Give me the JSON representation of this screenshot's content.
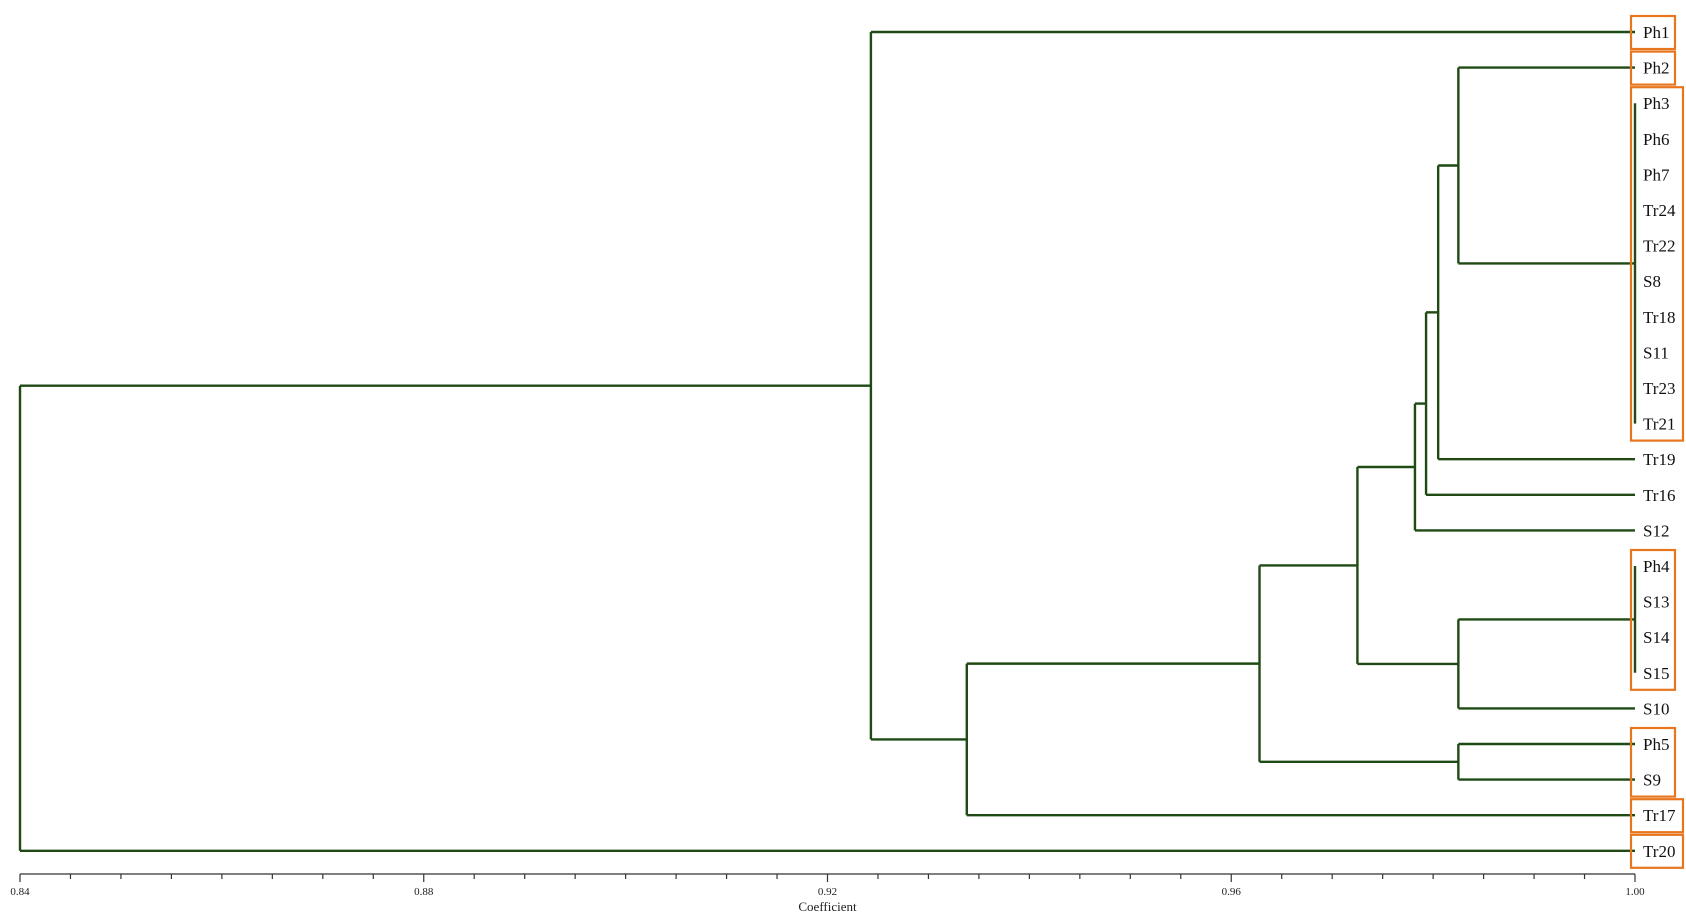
{
  "chart_data": {
    "type": "dendrogram",
    "xlabel": "Coefficient",
    "xlim": [
      0.84,
      1.0
    ],
    "ticks": [
      {
        "value": 0.84,
        "label": "0.84"
      },
      {
        "value": 0.88,
        "label": "0.88"
      },
      {
        "value": 0.92,
        "label": "0.92"
      },
      {
        "value": 0.96,
        "label": "0.96"
      },
      {
        "value": 1.0,
        "label": "1.00"
      }
    ],
    "colors": {
      "branch": "#1f4a14",
      "box": "#e8761f"
    },
    "leaves": [
      "Ph1",
      "Ph2",
      "Ph3",
      "Ph6",
      "Ph7",
      "Tr24",
      "Tr22",
      "S8",
      "Tr18",
      "S11",
      "Tr23",
      "Tr21",
      "Tr19",
      "Tr16",
      "S12",
      "Ph4",
      "S13",
      "S14",
      "S15",
      "S10",
      "Ph5",
      "S9",
      "Tr17",
      "Tr20"
    ],
    "merges": [
      {
        "id": "n1",
        "children": [
          "Ph3",
          "Ph6",
          "Ph7",
          "Tr24",
          "Tr22",
          "S8",
          "Tr18",
          "S11",
          "Tr23",
          "Tr21"
        ],
        "height": 1.0
      },
      {
        "id": "n2",
        "children": [
          "Ph2",
          "n1"
        ],
        "height": 0.9825
      },
      {
        "id": "n3",
        "children": [
          "n2",
          "Tr19"
        ],
        "height": 0.9805
      },
      {
        "id": "n4",
        "children": [
          "n3",
          "Tr16"
        ],
        "height": 0.9793
      },
      {
        "id": "n5",
        "children": [
          "n4",
          "S12"
        ],
        "height": 0.9782
      },
      {
        "id": "n6",
        "children": [
          "Ph4",
          "S13",
          "S14",
          "S15"
        ],
        "height": 1.0
      },
      {
        "id": "n7",
        "children": [
          "n6",
          "S10"
        ],
        "height": 0.9825
      },
      {
        "id": "n8",
        "children": [
          "n5",
          "n7"
        ],
        "height": 0.9725
      },
      {
        "id": "n9",
        "children": [
          "Ph5",
          "S9"
        ],
        "height": 0.9825
      },
      {
        "id": "n10",
        "children": [
          "n8",
          "n9"
        ],
        "height": 0.9628
      },
      {
        "id": "n11",
        "children": [
          "n10",
          "Tr17"
        ],
        "height": 0.9338
      },
      {
        "id": "n12",
        "children": [
          "Ph1",
          "n11"
        ],
        "height": 0.9243
      },
      {
        "id": "n13",
        "children": [
          "n12",
          "Tr20"
        ],
        "height": 0.84
      }
    ],
    "boxed_groups": [
      [
        "Ph1"
      ],
      [
        "Ph2"
      ],
      [
        "Ph3",
        "Ph6",
        "Ph7",
        "Tr24",
        "Tr22",
        "S8",
        "Tr18",
        "S11",
        "Tr23",
        "Tr21"
      ],
      [
        "Ph4",
        "S13",
        "S14",
        "S15"
      ],
      [
        "Ph5",
        "S9"
      ],
      [
        "Tr17"
      ],
      [
        "Tr20"
      ]
    ]
  }
}
